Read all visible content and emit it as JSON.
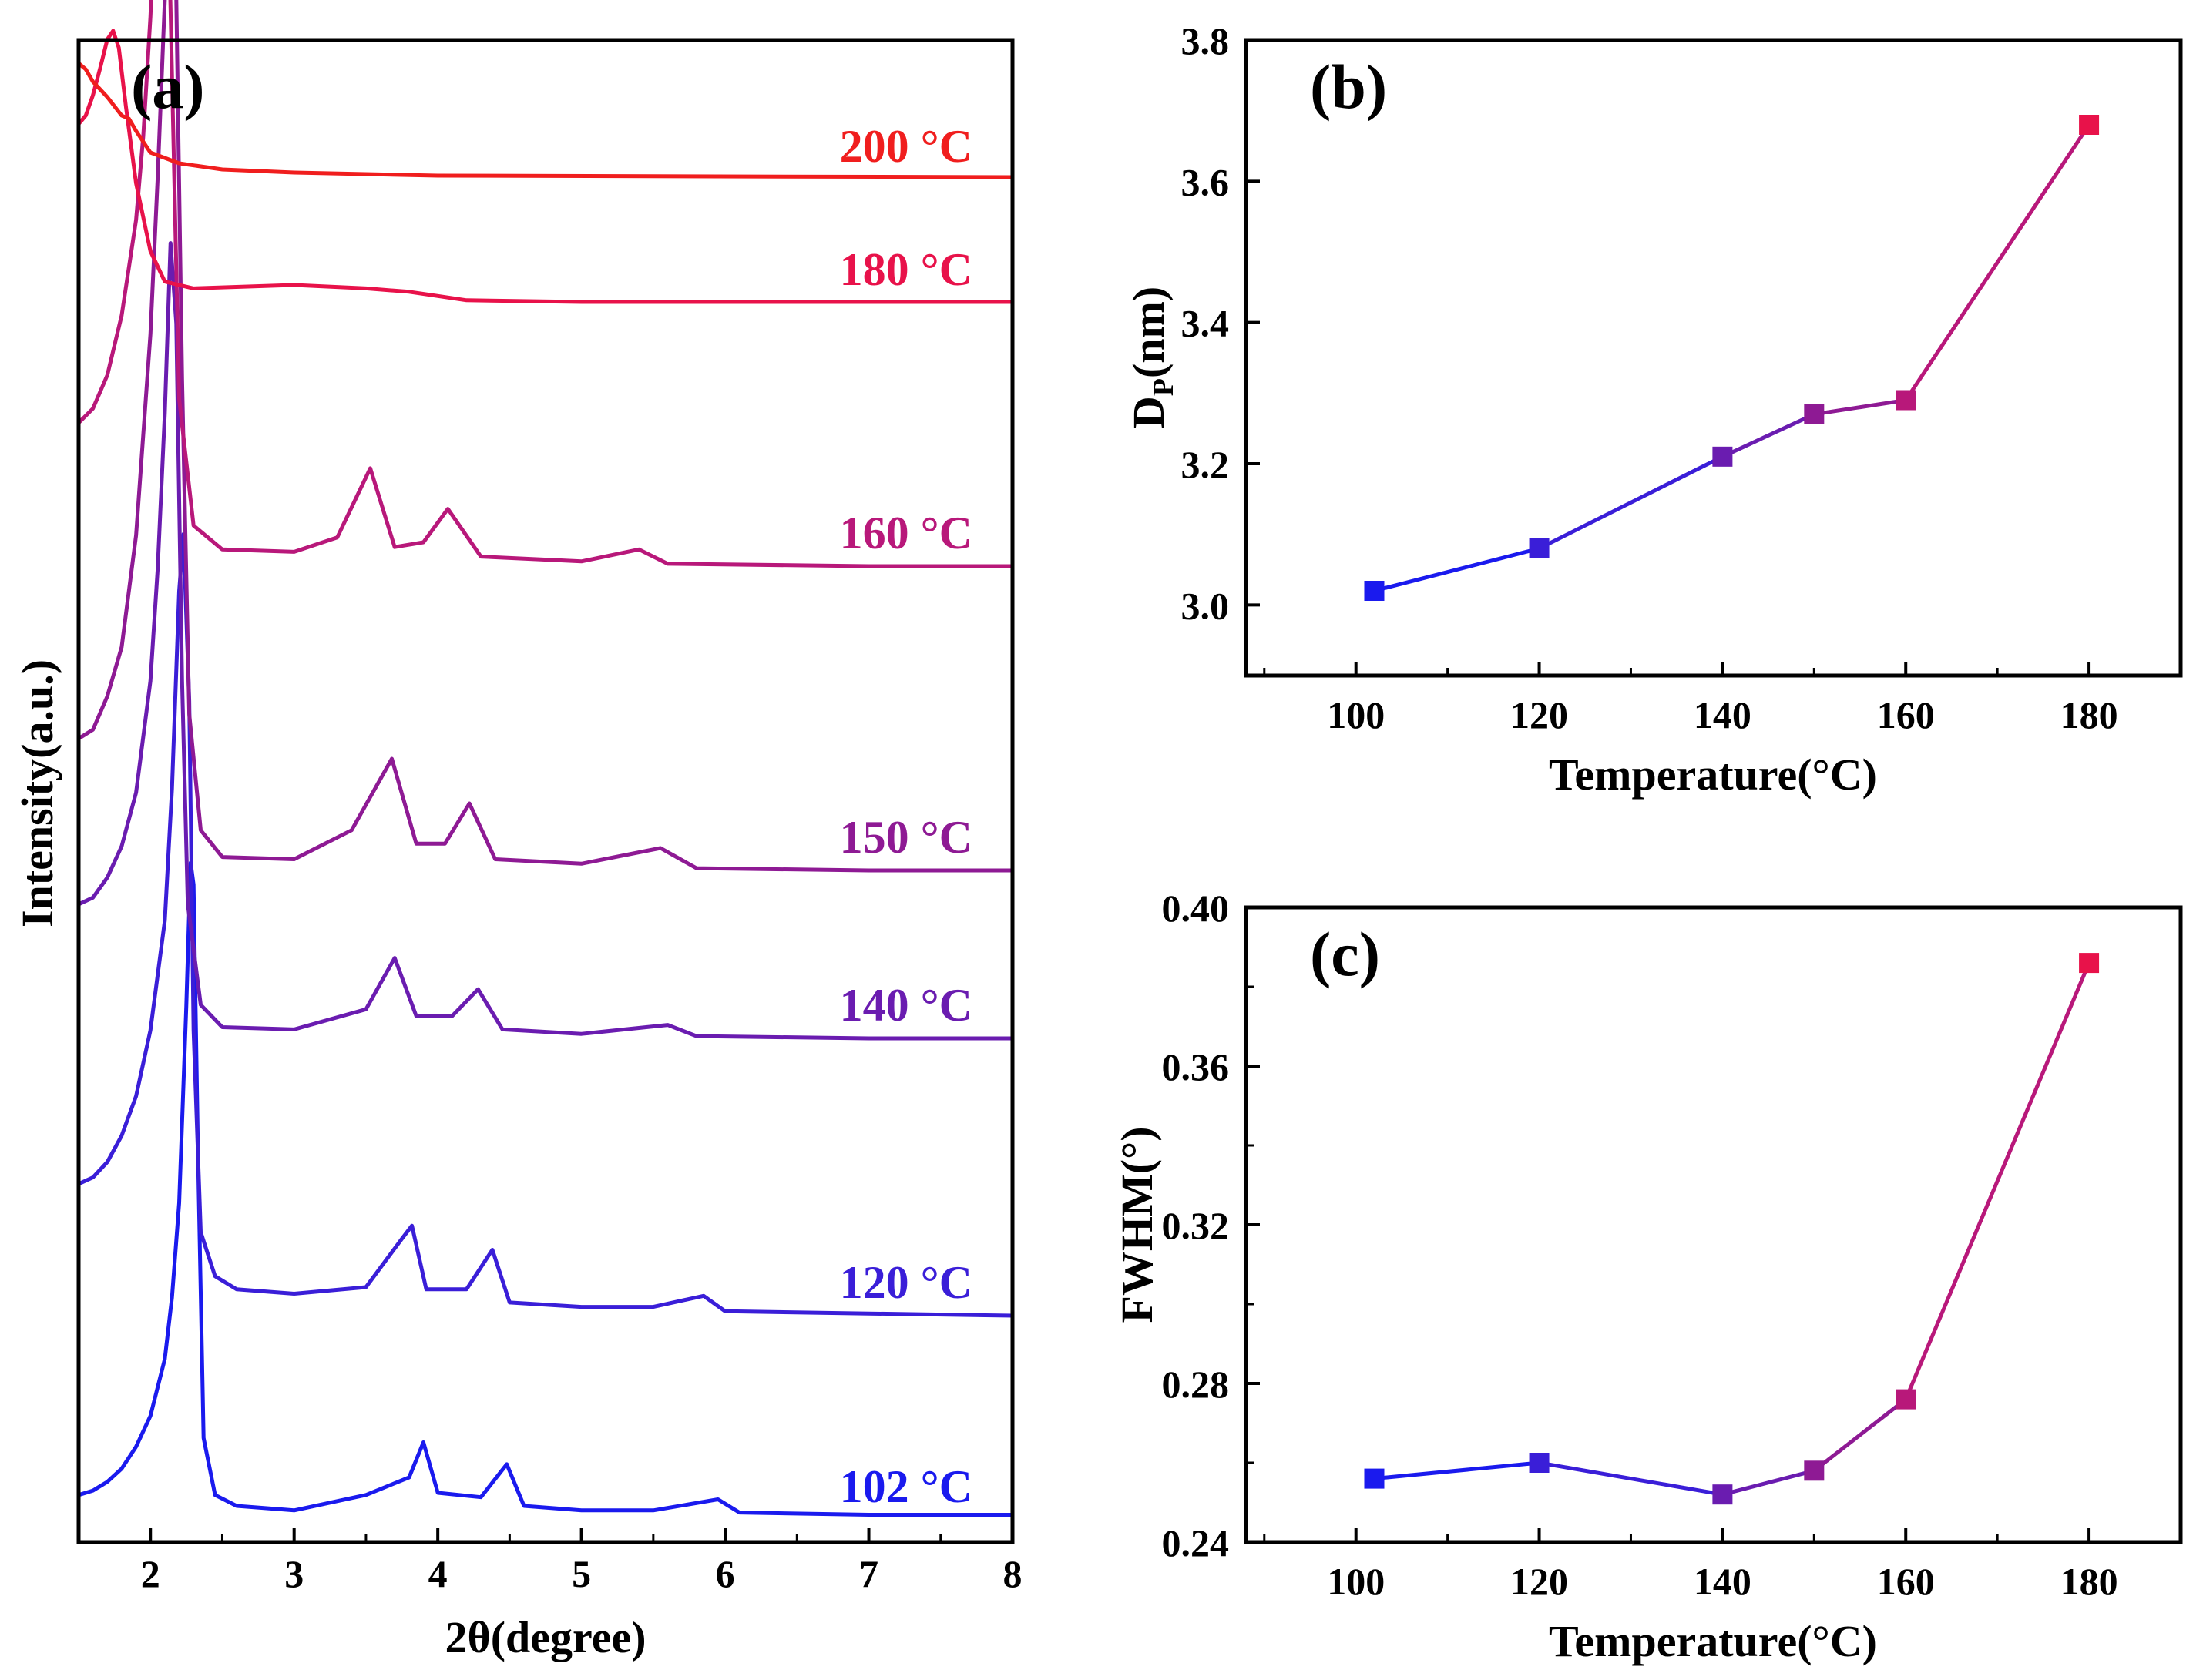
{
  "colors": {
    "c102": "#1a1aee",
    "c120": "#3a1ed8",
    "c140": "#6a1cb0",
    "c150": "#8e1a94",
    "c160": "#b8187a",
    "c180": "#e8124a",
    "c200": "#f01e1e"
  },
  "chart_data": [
    {
      "id": "a",
      "type": "line",
      "panel_label": "(a)",
      "xlabel": "2θ(degree)",
      "ylabel": "Intensity(a.u.)",
      "xlim": [
        1.5,
        8
      ],
      "x_ticks": [
        "2",
        "3",
        "4",
        "5",
        "6",
        "7",
        "8"
      ],
      "y_ticks": [],
      "grid": false,
      "note_units": "Intensity in arbitrary units; curves vertically stacked",
      "series": [
        {
          "key": "c102",
          "label": "102 °C",
          "baseline": 0.0,
          "x": [
            1.5,
            1.6,
            1.7,
            1.8,
            1.9,
            2.0,
            2.1,
            2.15,
            2.2,
            2.25,
            2.28,
            2.3,
            2.33,
            2.37,
            2.45,
            2.6,
            3.0,
            3.5,
            3.8,
            3.9,
            4.0,
            4.3,
            4.48,
            4.6,
            5.0,
            5.5,
            5.95,
            6.1,
            7.0,
            8.0
          ],
          "y": [
            0.12,
            0.14,
            0.18,
            0.24,
            0.34,
            0.48,
            0.74,
            1.02,
            1.45,
            2.35,
            3.0,
            2.9,
            1.7,
            0.38,
            0.12,
            0.07,
            0.05,
            0.12,
            0.2,
            0.36,
            0.13,
            0.11,
            0.26,
            0.07,
            0.05,
            0.05,
            0.1,
            0.04,
            0.03,
            0.03
          ]
        },
        {
          "key": "c120",
          "label": "120 °C",
          "baseline": 0.0,
          "x": [
            1.5,
            1.6,
            1.7,
            1.8,
            1.9,
            2.0,
            2.1,
            2.15,
            2.2,
            2.23,
            2.27,
            2.3,
            2.35,
            2.45,
            2.6,
            3.0,
            3.5,
            3.75,
            3.82,
            3.92,
            4.2,
            4.38,
            4.5,
            5.0,
            5.5,
            5.85,
            6.0,
            7.0,
            8.0
          ],
          "y": [
            0.6,
            0.63,
            0.7,
            0.82,
            1.0,
            1.3,
            1.8,
            2.4,
            3.3,
            3.56,
            2.8,
            1.3,
            0.38,
            0.18,
            0.12,
            0.1,
            0.13,
            0.35,
            0.41,
            0.12,
            0.12,
            0.3,
            0.06,
            0.04,
            0.04,
            0.09,
            0.02,
            0.01,
            0.0
          ]
        },
        {
          "key": "c140",
          "label": "140 °C",
          "baseline": 0.0,
          "x": [
            1.5,
            1.6,
            1.7,
            1.8,
            1.9,
            2.0,
            2.05,
            2.1,
            2.14,
            2.18,
            2.22,
            2.26,
            2.35,
            2.5,
            3.0,
            3.5,
            3.7,
            3.85,
            4.1,
            4.28,
            4.45,
            5.0,
            5.6,
            5.8,
            7.0,
            8.0
          ],
          "y": [
            0.6,
            0.63,
            0.72,
            0.86,
            1.1,
            1.6,
            2.1,
            2.8,
            3.56,
            3.2,
            1.6,
            0.6,
            0.15,
            0.05,
            0.04,
            0.13,
            0.36,
            0.1,
            0.1,
            0.22,
            0.04,
            0.02,
            0.06,
            0.01,
            0.0,
            0.0
          ]
        },
        {
          "key": "c150",
          "label": "150 °C",
          "baseline": 0.0,
          "x": [
            1.5,
            1.6,
            1.7,
            1.8,
            1.9,
            2.0,
            2.05,
            2.1,
            2.14,
            2.18,
            2.22,
            2.27,
            2.35,
            2.5,
            3.0,
            3.4,
            3.68,
            3.85,
            4.05,
            4.22,
            4.4,
            5.0,
            5.55,
            5.8,
            7.0,
            8.0
          ],
          "y": [
            0.59,
            0.63,
            0.78,
            1.0,
            1.5,
            2.4,
            3.1,
            3.9,
            4.5,
            3.9,
            2.2,
            0.7,
            0.18,
            0.06,
            0.05,
            0.18,
            0.5,
            0.12,
            0.12,
            0.3,
            0.05,
            0.03,
            0.1,
            0.01,
            0.0,
            0.0
          ]
        },
        {
          "key": "c160",
          "label": "160 °C",
          "baseline": 0.0,
          "x": [
            1.5,
            1.6,
            1.7,
            1.8,
            1.9,
            1.95,
            2.0,
            2.05,
            2.09,
            2.13,
            2.2,
            2.3,
            2.5,
            3.0,
            3.3,
            3.53,
            3.7,
            3.9,
            4.07,
            4.3,
            5.0,
            5.4,
            5.6,
            7.0,
            8.0
          ],
          "y": [
            0.6,
            0.66,
            0.8,
            1.05,
            1.45,
            1.8,
            2.3,
            3.0,
            3.55,
            2.6,
            0.7,
            0.17,
            0.07,
            0.06,
            0.12,
            0.41,
            0.08,
            0.1,
            0.24,
            0.04,
            0.02,
            0.07,
            0.01,
            0.0,
            0.0
          ]
        },
        {
          "key": "c180",
          "label": "180 °C",
          "baseline": 0.0,
          "x": [
            1.5,
            1.55,
            1.6,
            1.65,
            1.7,
            1.74,
            1.78,
            1.83,
            1.9,
            2.0,
            2.1,
            2.3,
            3.0,
            3.5,
            3.8,
            4.2,
            5.0,
            8.0
          ],
          "y": [
            1.05,
            1.1,
            1.22,
            1.38,
            1.55,
            1.6,
            1.5,
            1.15,
            0.7,
            0.3,
            0.12,
            0.08,
            0.1,
            0.08,
            0.06,
            0.01,
            0.0,
            0.0
          ]
        },
        {
          "key": "c200",
          "label": "200 °C",
          "baseline": 0.0,
          "x": [
            1.5,
            1.55,
            1.6,
            1.7,
            1.8,
            1.85,
            1.9,
            2.0,
            2.2,
            2.5,
            3.0,
            4.0,
            8.0
          ],
          "y": [
            0.74,
            0.7,
            0.62,
            0.52,
            0.4,
            0.38,
            0.3,
            0.16,
            0.09,
            0.05,
            0.03,
            0.01,
            0.0
          ]
        }
      ]
    },
    {
      "id": "b",
      "type": "line",
      "panel_label": "(b)",
      "xlabel": "Temperature(°C)",
      "ylabel": "D",
      "ylabel_sub": "P",
      "ylabel_unit": "(nm)",
      "xlim": [
        88,
        190
      ],
      "ylim": [
        2.9,
        3.8
      ],
      "x_ticks": [
        "100",
        "120",
        "140",
        "160",
        "180"
      ],
      "y_ticks": [
        "3.0",
        "3.2",
        "3.4",
        "3.6",
        "3.8"
      ],
      "grid": false,
      "points": [
        {
          "x": 102,
          "y": 3.02,
          "color": "c102"
        },
        {
          "x": 120,
          "y": 3.08,
          "color": "c120"
        },
        {
          "x": 140,
          "y": 3.21,
          "color": "c140"
        },
        {
          "x": 150,
          "y": 3.27,
          "color": "c150"
        },
        {
          "x": 160,
          "y": 3.29,
          "color": "c160"
        },
        {
          "x": 180,
          "y": 3.68,
          "color": "c180"
        }
      ]
    },
    {
      "id": "c",
      "type": "line",
      "panel_label": "(c)",
      "xlabel": "Temperature(°C)",
      "ylabel": "FWHM(°)",
      "xlim": [
        88,
        190
      ],
      "ylim": [
        0.24,
        0.4
      ],
      "x_ticks": [
        "100",
        "120",
        "140",
        "160",
        "180"
      ],
      "y_ticks": [
        "0.24",
        "0.28",
        "0.32",
        "0.36",
        "0.40"
      ],
      "grid": false,
      "points": [
        {
          "x": 102,
          "y": 0.256,
          "color": "c102"
        },
        {
          "x": 120,
          "y": 0.26,
          "color": "c120"
        },
        {
          "x": 140,
          "y": 0.252,
          "color": "c140"
        },
        {
          "x": 150,
          "y": 0.258,
          "color": "c150"
        },
        {
          "x": 160,
          "y": 0.276,
          "color": "c160"
        },
        {
          "x": 180,
          "y": 0.386,
          "color": "c180"
        }
      ]
    }
  ]
}
